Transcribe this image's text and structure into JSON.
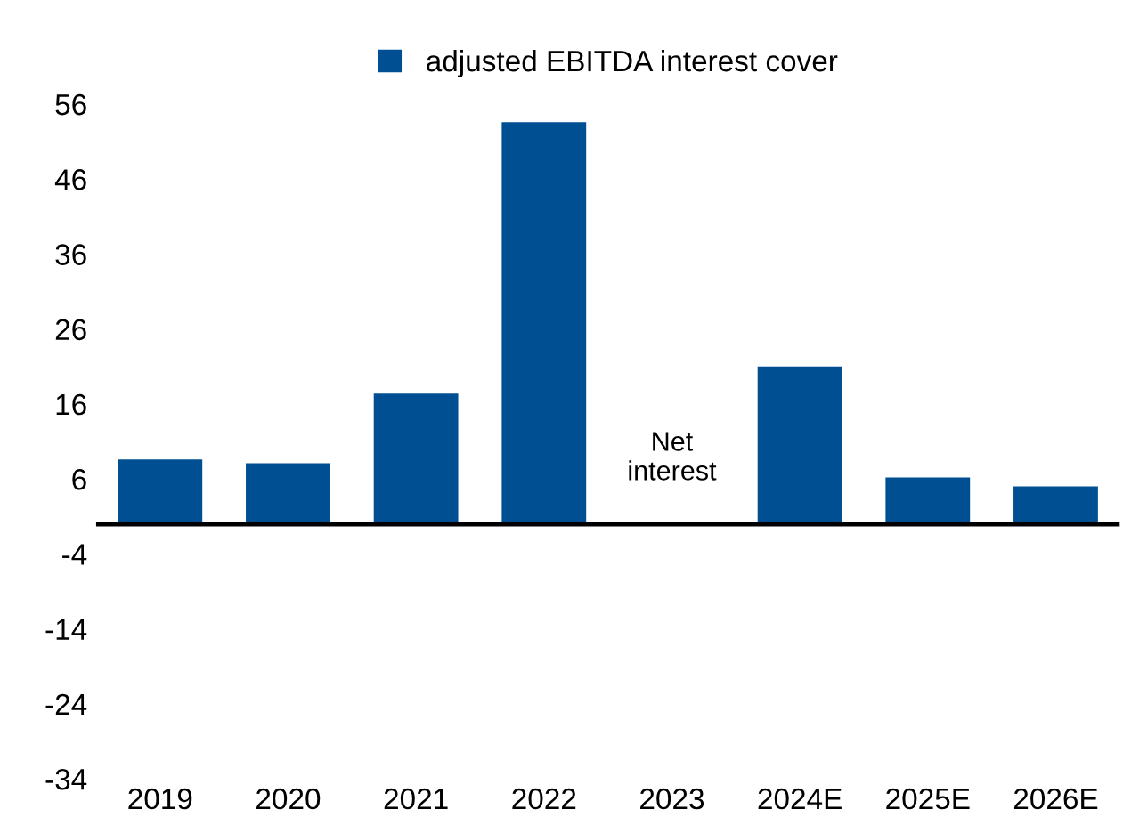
{
  "chart_data": {
    "type": "bar",
    "categories": [
      "2019",
      "2020",
      "2021",
      "2022",
      "2023",
      "2024E",
      "2025E",
      "2026E"
    ],
    "series": [
      {
        "name": "adjusted EBITDA interest cover",
        "color": "#004f93",
        "values": [
          8.6,
          8.1,
          17.4,
          53.6,
          null,
          21.0,
          6.2,
          5.0
        ]
      }
    ],
    "ylim": [
      -34,
      56
    ],
    "yticks": [
      -34,
      -24,
      -14,
      -4,
      6,
      16,
      26,
      36,
      46,
      56
    ],
    "annotations": [
      "Net\ninterest"
    ],
    "grid": false,
    "legend": "top"
  }
}
